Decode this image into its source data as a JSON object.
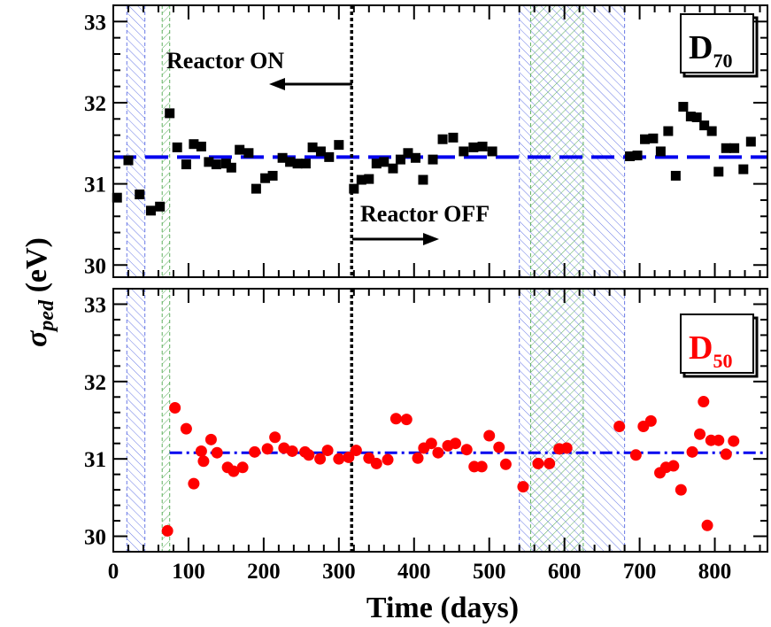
{
  "chart_data": [
    {
      "type": "scatter",
      "panel_label": {
        "main": "D",
        "sub": "70"
      },
      "label_color": "#000000",
      "xlim": [
        0,
        870
      ],
      "ylim": [
        29.85,
        33.2
      ],
      "yticks": [
        30,
        31,
        32,
        33
      ],
      "marker": "square",
      "marker_color": "#000000",
      "fit_line": {
        "y": 31.33,
        "style": "dashed",
        "color": "#0000ee",
        "x_start": 0
      },
      "reactor_switch_x": 317,
      "annotations": [
        {
          "text": "Reactor ON",
          "arrow": "left"
        },
        {
          "text": "Reactor OFF",
          "arrow": "right"
        }
      ],
      "points": [
        {
          "x": 5,
          "y": 30.83
        },
        {
          "x": 20,
          "y": 31.29
        },
        {
          "x": 35,
          "y": 30.87
        },
        {
          "x": 50,
          "y": 30.67
        },
        {
          "x": 62,
          "y": 30.72
        },
        {
          "x": 75,
          "y": 31.87
        },
        {
          "x": 85,
          "y": 31.45
        },
        {
          "x": 97,
          "y": 31.24
        },
        {
          "x": 107,
          "y": 31.49
        },
        {
          "x": 117,
          "y": 31.46
        },
        {
          "x": 127,
          "y": 31.27
        },
        {
          "x": 137,
          "y": 31.24
        },
        {
          "x": 150,
          "y": 31.25
        },
        {
          "x": 157,
          "y": 31.2
        },
        {
          "x": 168,
          "y": 31.42
        },
        {
          "x": 180,
          "y": 31.38
        },
        {
          "x": 190,
          "y": 30.94
        },
        {
          "x": 202,
          "y": 31.07
        },
        {
          "x": 212,
          "y": 31.1
        },
        {
          "x": 225,
          "y": 31.32
        },
        {
          "x": 235,
          "y": 31.27
        },
        {
          "x": 245,
          "y": 31.25
        },
        {
          "x": 256,
          "y": 31.25
        },
        {
          "x": 265,
          "y": 31.45
        },
        {
          "x": 276,
          "y": 31.4
        },
        {
          "x": 287,
          "y": 31.33
        },
        {
          "x": 300,
          "y": 31.48
        },
        {
          "x": 320,
          "y": 30.94
        },
        {
          "x": 330,
          "y": 31.05
        },
        {
          "x": 340,
          "y": 31.06
        },
        {
          "x": 350,
          "y": 31.25
        },
        {
          "x": 360,
          "y": 31.27
        },
        {
          "x": 372,
          "y": 31.19
        },
        {
          "x": 382,
          "y": 31.3
        },
        {
          "x": 392,
          "y": 31.38
        },
        {
          "x": 402,
          "y": 31.32
        },
        {
          "x": 412,
          "y": 31.05
        },
        {
          "x": 425,
          "y": 31.3
        },
        {
          "x": 438,
          "y": 31.55
        },
        {
          "x": 452,
          "y": 31.57
        },
        {
          "x": 466,
          "y": 31.4
        },
        {
          "x": 479,
          "y": 31.45
        },
        {
          "x": 491,
          "y": 31.46
        },
        {
          "x": 504,
          "y": 31.4
        },
        {
          "x": 687,
          "y": 31.34
        },
        {
          "x": 697,
          "y": 31.35
        },
        {
          "x": 707,
          "y": 31.55
        },
        {
          "x": 718,
          "y": 31.56
        },
        {
          "x": 728,
          "y": 31.4
        },
        {
          "x": 738,
          "y": 31.65
        },
        {
          "x": 748,
          "y": 31.1
        },
        {
          "x": 758,
          "y": 31.95
        },
        {
          "x": 768,
          "y": 31.83
        },
        {
          "x": 776,
          "y": 31.82
        },
        {
          "x": 786,
          "y": 31.72
        },
        {
          "x": 796,
          "y": 31.65
        },
        {
          "x": 805,
          "y": 31.15
        },
        {
          "x": 815,
          "y": 31.44
        },
        {
          "x": 826,
          "y": 31.44
        },
        {
          "x": 838,
          "y": 31.18
        },
        {
          "x": 848,
          "y": 31.52
        }
      ]
    },
    {
      "type": "scatter",
      "panel_label": {
        "main": "D",
        "sub": "50"
      },
      "label_color": "#ff0000",
      "xlim": [
        0,
        870
      ],
      "ylim": [
        29.8,
        33.2
      ],
      "yticks": [
        30,
        31,
        32,
        33
      ],
      "xticks": [
        0,
        100,
        200,
        300,
        400,
        500,
        600,
        700,
        800
      ],
      "xlabel": "Time (days)",
      "marker": "circle",
      "marker_color": "#ff0000",
      "fit_line": {
        "y": 31.08,
        "style": "dash-dot",
        "color": "#0000ee",
        "x_start": 75
      },
      "reactor_switch_x": 317,
      "points": [
        {
          "x": 72,
          "y": 30.07
        },
        {
          "x": 82,
          "y": 31.66
        },
        {
          "x": 97,
          "y": 31.39
        },
        {
          "x": 107,
          "y": 30.68
        },
        {
          "x": 117,
          "y": 31.1
        },
        {
          "x": 120,
          "y": 30.97
        },
        {
          "x": 130,
          "y": 31.25
        },
        {
          "x": 138,
          "y": 31.08
        },
        {
          "x": 152,
          "y": 30.89
        },
        {
          "x": 160,
          "y": 30.84
        },
        {
          "x": 172,
          "y": 30.89
        },
        {
          "x": 188,
          "y": 31.09
        },
        {
          "x": 205,
          "y": 31.13
        },
        {
          "x": 215,
          "y": 31.28
        },
        {
          "x": 227,
          "y": 31.14
        },
        {
          "x": 238,
          "y": 31.1
        },
        {
          "x": 255,
          "y": 31.09
        },
        {
          "x": 260,
          "y": 31.05
        },
        {
          "x": 275,
          "y": 31.0
        },
        {
          "x": 285,
          "y": 31.11
        },
        {
          "x": 300,
          "y": 31.0
        },
        {
          "x": 313,
          "y": 31.02
        },
        {
          "x": 323,
          "y": 31.11
        },
        {
          "x": 340,
          "y": 31.01
        },
        {
          "x": 350,
          "y": 30.94
        },
        {
          "x": 365,
          "y": 30.99
        },
        {
          "x": 376,
          "y": 31.52
        },
        {
          "x": 390,
          "y": 31.51
        },
        {
          "x": 405,
          "y": 31.01
        },
        {
          "x": 413,
          "y": 31.14
        },
        {
          "x": 423,
          "y": 31.2
        },
        {
          "x": 432,
          "y": 31.08
        },
        {
          "x": 445,
          "y": 31.17
        },
        {
          "x": 455,
          "y": 31.2
        },
        {
          "x": 470,
          "y": 31.12
        },
        {
          "x": 480,
          "y": 30.9
        },
        {
          "x": 490,
          "y": 30.9
        },
        {
          "x": 500,
          "y": 31.3
        },
        {
          "x": 513,
          "y": 31.15
        },
        {
          "x": 522,
          "y": 30.93
        },
        {
          "x": 545,
          "y": 30.64
        },
        {
          "x": 565,
          "y": 30.94
        },
        {
          "x": 580,
          "y": 30.94
        },
        {
          "x": 593,
          "y": 31.13
        },
        {
          "x": 603,
          "y": 31.14
        },
        {
          "x": 673,
          "y": 31.42
        },
        {
          "x": 695,
          "y": 31.05
        },
        {
          "x": 705,
          "y": 31.42
        },
        {
          "x": 715,
          "y": 31.49
        },
        {
          "x": 727,
          "y": 30.82
        },
        {
          "x": 735,
          "y": 30.89
        },
        {
          "x": 745,
          "y": 30.91
        },
        {
          "x": 755,
          "y": 30.6
        },
        {
          "x": 770,
          "y": 31.09
        },
        {
          "x": 780,
          "y": 31.32
        },
        {
          "x": 785,
          "y": 31.74
        },
        {
          "x": 790,
          "y": 30.14
        },
        {
          "x": 795,
          "y": 31.24
        },
        {
          "x": 805,
          "y": 31.24
        },
        {
          "x": 815,
          "y": 31.06
        },
        {
          "x": 825,
          "y": 31.23
        }
      ]
    }
  ],
  "shaded_regions": [
    {
      "x0": 18,
      "x1": 42,
      "pattern": "blue-hatch"
    },
    {
      "x0": 65,
      "x1": 75,
      "pattern": "green-hatch"
    },
    {
      "x0": 540,
      "x1": 680,
      "pattern": "blue-hatch"
    },
    {
      "x0": 555,
      "x1": 625,
      "pattern": "green-hatch"
    }
  ],
  "axes": {
    "ylabel_main": "σ",
    "ylabel_sub": "ped",
    "ylabel_unit": " (eV)"
  },
  "colors": {
    "hatch_blue": "#6a7ae6",
    "hatch_green": "#5fb05f",
    "fit_line": "#0000ee"
  }
}
